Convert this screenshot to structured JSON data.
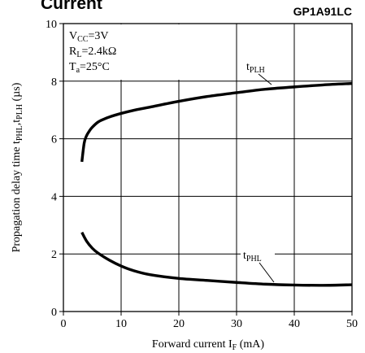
{
  "header": {
    "title": "Current",
    "part_number": "GP1A91LC"
  },
  "conditions": [
    {
      "symbol": "V",
      "sub": "CC",
      "value": "=3V"
    },
    {
      "symbol": "R",
      "sub": "L",
      "value": "=2.4kΩ"
    },
    {
      "symbol": "T",
      "sub": "a",
      "value": "=25°C"
    }
  ],
  "chart_data": {
    "type": "line",
    "xlabel": {
      "text": "Forward current I",
      "sub": "F",
      "unit": " (mA)"
    },
    "ylabel": {
      "text": "Propagation delay time t",
      "sub1": "PHL",
      "mid": ",t",
      "sub2": "PLH",
      "unit": " (µs)"
    },
    "xlim": [
      0,
      50
    ],
    "ylim": [
      0,
      10
    ],
    "x_ticks": [
      0,
      10,
      20,
      30,
      40,
      50
    ],
    "y_ticks": [
      0,
      2,
      4,
      6,
      8,
      10
    ],
    "grid": true,
    "series": [
      {
        "name": "tPLH",
        "label_base": "t",
        "label_sub": "PLH",
        "x": [
          3.2,
          3.6,
          4.0,
          4.5,
          5.0,
          6.0,
          7.0,
          8.0,
          10,
          12,
          15,
          20,
          25,
          30,
          35,
          40,
          45,
          50
        ],
        "y": [
          5.2,
          5.85,
          6.1,
          6.27,
          6.4,
          6.58,
          6.68,
          6.76,
          6.88,
          6.98,
          7.1,
          7.3,
          7.47,
          7.6,
          7.72,
          7.8,
          7.87,
          7.92
        ]
      },
      {
        "name": "tPHL",
        "label_base": "t",
        "label_sub": "PHL",
        "x": [
          3.2,
          4.0,
          5.0,
          6.0,
          8.0,
          10,
          12,
          15,
          20,
          25,
          30,
          35,
          40,
          45,
          50
        ],
        "y": [
          2.75,
          2.45,
          2.2,
          2.03,
          1.78,
          1.58,
          1.43,
          1.28,
          1.15,
          1.08,
          1.01,
          0.95,
          0.92,
          0.91,
          0.93
        ]
      }
    ]
  }
}
